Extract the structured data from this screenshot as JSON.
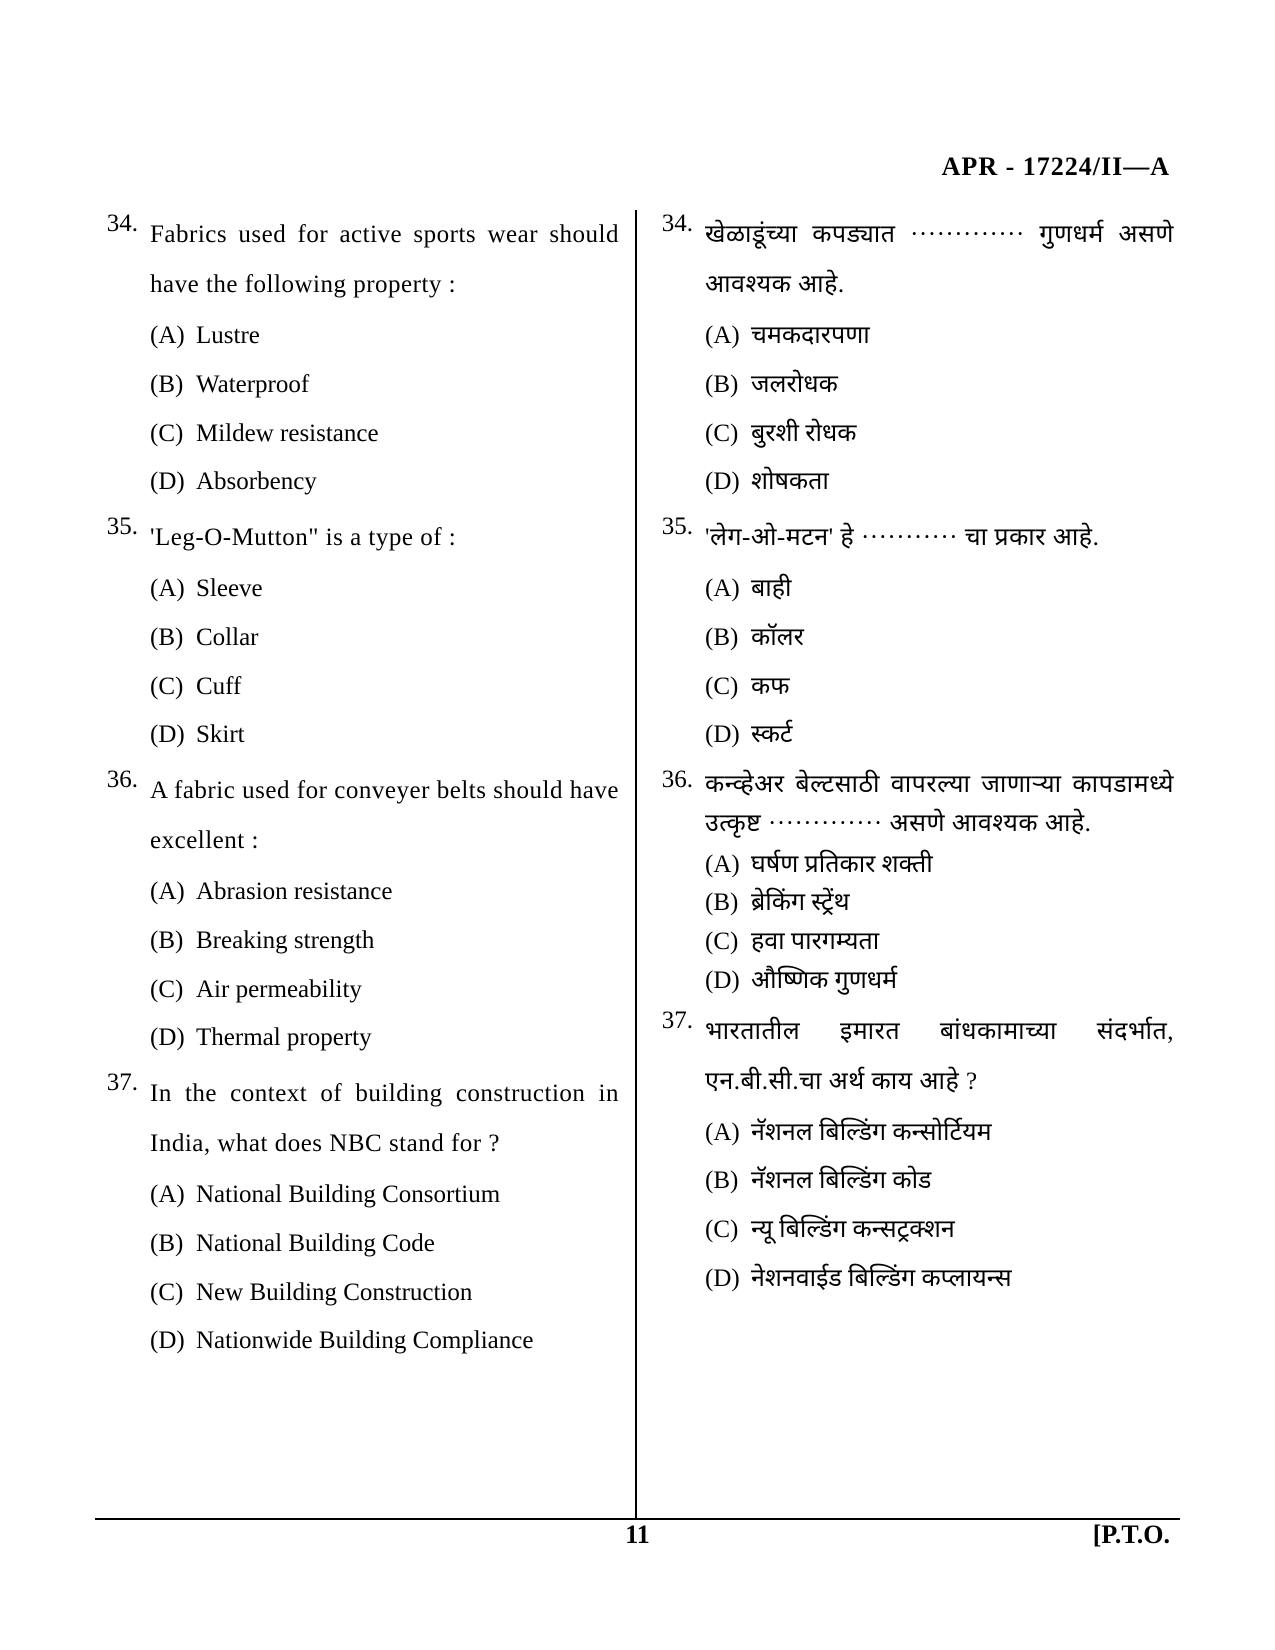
{
  "header": {
    "code": "APR - 17224/II—A"
  },
  "footer": {
    "page_number": "11",
    "pto": "[P.T.O."
  },
  "left": {
    "questions": [
      {
        "num": "34.",
        "stem": "Fabrics used for active sports wear should have the following property :",
        "options": [
          {
            "key": "(A)",
            "text": "Lustre"
          },
          {
            "key": "(B)",
            "text": "Waterproof"
          },
          {
            "key": "(C)",
            "text": "Mildew resistance"
          },
          {
            "key": "(D)",
            "text": "Absorbency"
          }
        ]
      },
      {
        "num": "35.",
        "stem": "'Leg-O-Mutton\" is a type of :",
        "options": [
          {
            "key": "(A)",
            "text": "Sleeve"
          },
          {
            "key": "(B)",
            "text": "Collar"
          },
          {
            "key": "(C)",
            "text": "Cuff"
          },
          {
            "key": "(D)",
            "text": "Skirt"
          }
        ]
      },
      {
        "num": "36.",
        "stem": "A fabric used for conveyer belts should have excellent :",
        "options": [
          {
            "key": "(A)",
            "text": "Abrasion resistance"
          },
          {
            "key": "(B)",
            "text": "Breaking strength"
          },
          {
            "key": "(C)",
            "text": "Air permeability"
          },
          {
            "key": "(D)",
            "text": "Thermal property"
          }
        ]
      },
      {
        "num": "37.",
        "stem": "In the context of building construction in India, what does NBC stand for ?",
        "options": [
          {
            "key": "(A)",
            "text": "National Building Consortium"
          },
          {
            "key": "(B)",
            "text": "National Building Code"
          },
          {
            "key": "(C)",
            "text": "New Building Construction"
          },
          {
            "key": "(D)",
            "text": "Nationwide Building Compliance"
          }
        ]
      }
    ]
  },
  "right": {
    "questions": [
      {
        "num": "34.",
        "stem": "खेळाडूंच्या कपड्यात ············· गुणधर्म असणे आवश्यक आहे.",
        "options": [
          {
            "key": "(A)",
            "text": "चमकदारपणा"
          },
          {
            "key": "(B)",
            "text": "जलरोधक"
          },
          {
            "key": "(C)",
            "text": "बुरशी रोधक"
          },
          {
            "key": "(D)",
            "text": "शोषकता"
          }
        ]
      },
      {
        "num": "35.",
        "stem": "'लेग-ओ-मटन' हे ··········· चा प्रकार आहे.",
        "options": [
          {
            "key": "(A)",
            "text": "बाही"
          },
          {
            "key": "(B)",
            "text": "कॉलर"
          },
          {
            "key": "(C)",
            "text": "कफ"
          },
          {
            "key": "(D)",
            "text": "स्कर्ट"
          }
        ]
      },
      {
        "num": "36.",
        "stem": "कन्व्हेअर बेल्टसाठी वापरल्या जाणाऱ्या कापडामध्ये उत्कृष्ट ············· असणे आवश्यक आहे.",
        "tight": true,
        "options": [
          {
            "key": "(A)",
            "text": "घर्षण प्रतिकार शक्ती"
          },
          {
            "key": "(B)",
            "text": "ब्रेकिंग स्ट्रेंथ"
          },
          {
            "key": "(C)",
            "text": "हवा पारगम्यता"
          },
          {
            "key": "(D)",
            "text": "औष्णिक गुणधर्म"
          }
        ]
      },
      {
        "num": "37.",
        "stem": "भारतातील इमारत बांधकामाच्या संदर्भात, एन.बी.सी.चा अर्थ काय आहे ?",
        "options": [
          {
            "key": "(A)",
            "text": "नॅशनल बिल्डिंग कन्सोर्टियम"
          },
          {
            "key": "(B)",
            "text": "नॅशनल बिल्डिंग कोड"
          },
          {
            "key": "(C)",
            "text": "न्यू बिल्डिंग कन्सट्रक्शन"
          },
          {
            "key": "(D)",
            "text": "नेशनवाईड बिल्डिंग कप्लायन्स"
          }
        ]
      }
    ]
  }
}
